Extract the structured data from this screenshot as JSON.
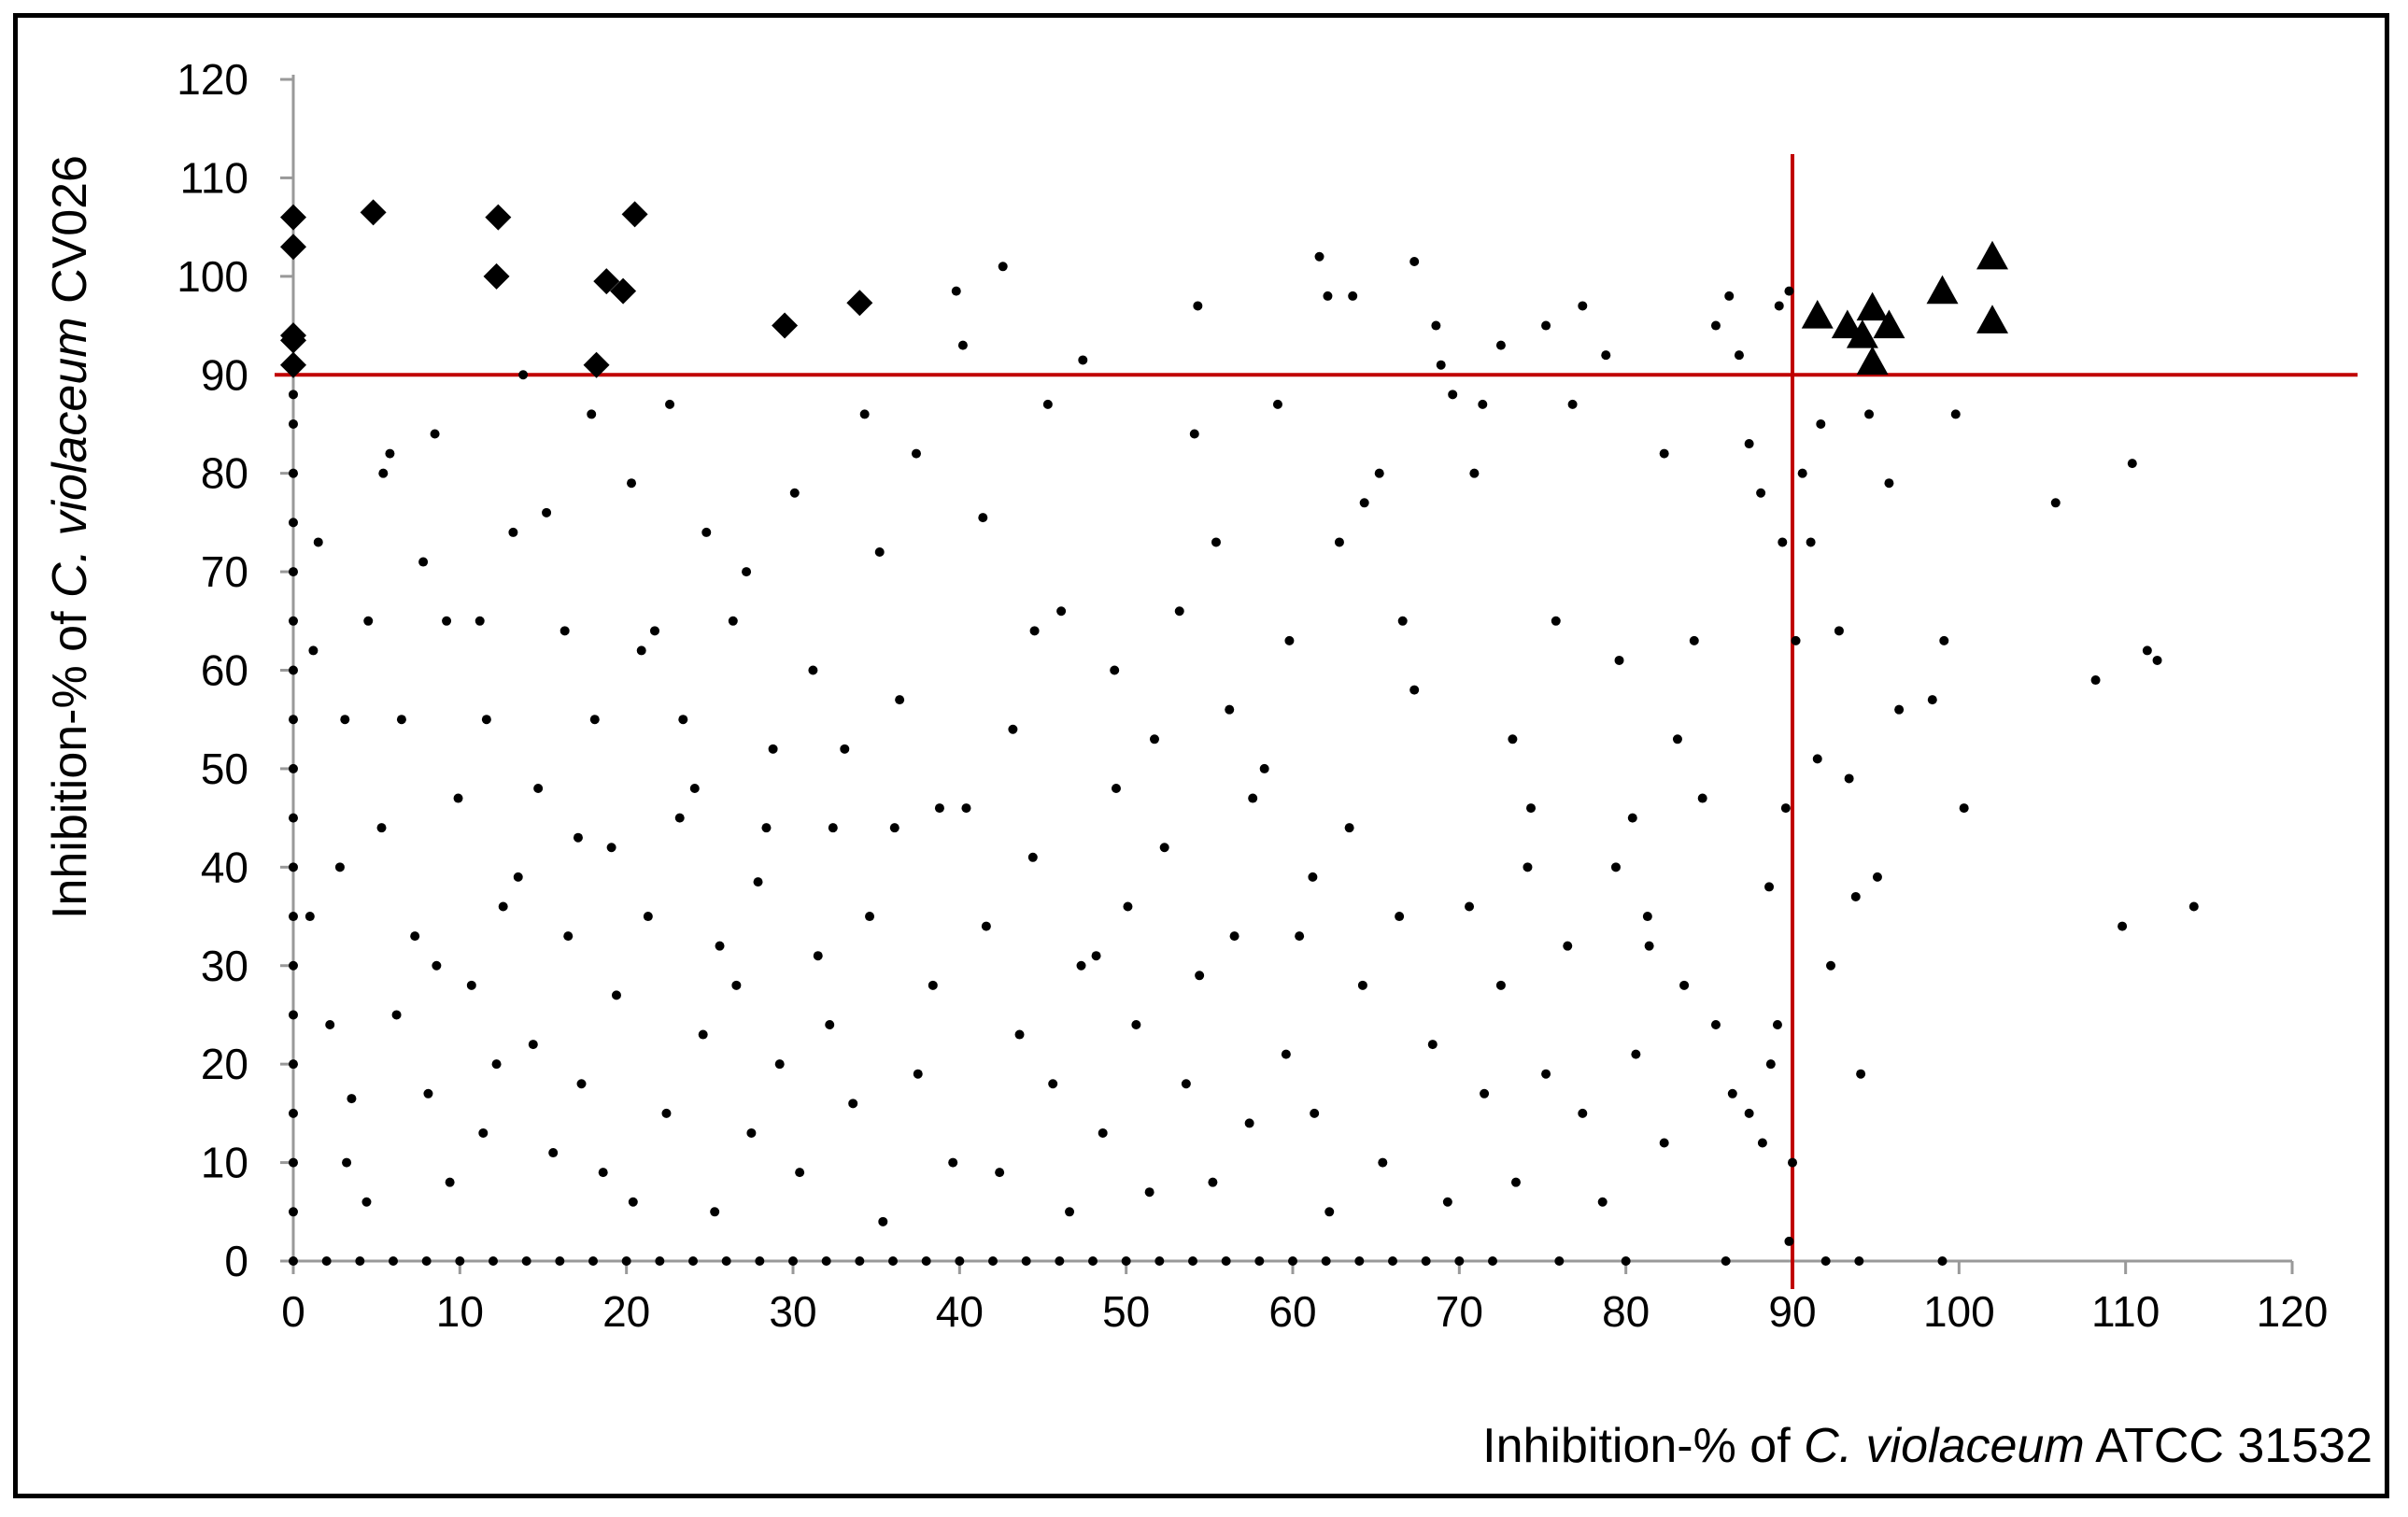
{
  "chart_data": {
    "type": "scatter",
    "xlabel": {
      "prefix": "Inhibition-% of ",
      "italic": "C. violaceum",
      "suffix": " ATCC 31532"
    },
    "ylabel": {
      "prefix": "Inhibition-% of ",
      "italic": "C. violaceum",
      "suffix": " CV026"
    },
    "xlim": [
      0,
      120
    ],
    "ylim": [
      0,
      120
    ],
    "xticks": [
      "0",
      "10",
      "20",
      "30",
      "40",
      "50",
      "60",
      "70",
      "80",
      "90",
      "100",
      "110",
      "120"
    ],
    "yticks": [
      "0",
      "10",
      "20",
      "30",
      "40",
      "50",
      "60",
      "70",
      "80",
      "90",
      "100",
      "110",
      "120"
    ],
    "grid": false,
    "legend": "none",
    "threshold_lines": {
      "x": 90,
      "y": 90,
      "color": "#C00000"
    },
    "marker_color": "#000000",
    "series": [
      {
        "marker": "diamond",
        "points": [
          [
            0,
            106
          ],
          [
            0,
            103
          ],
          [
            0,
            94
          ],
          [
            0,
            93.5
          ],
          [
            0,
            91
          ],
          [
            4.8,
            106.5
          ],
          [
            12.3,
            106
          ],
          [
            12.2,
            100
          ],
          [
            20.5,
            106.3
          ],
          [
            18.8,
            99.5
          ],
          [
            19.8,
            98.5
          ],
          [
            18.2,
            91
          ],
          [
            29.5,
            95
          ],
          [
            34,
            97.3
          ]
        ]
      },
      {
        "marker": "triangle",
        "points": [
          [
            91.5,
            96
          ],
          [
            93.3,
            95
          ],
          [
            94.2,
            94
          ],
          [
            94.8,
            96.8
          ],
          [
            94.8,
            91.3
          ],
          [
            95.8,
            95
          ],
          [
            99,
            98.5
          ],
          [
            102,
            102
          ],
          [
            102,
            95.5
          ]
        ]
      },
      {
        "marker": "dot",
        "points": [
          [
            0,
            0
          ],
          [
            0,
            5
          ],
          [
            0,
            10
          ],
          [
            0,
            15
          ],
          [
            0,
            20
          ],
          [
            0,
            25
          ],
          [
            0,
            30
          ],
          [
            0,
            35
          ],
          [
            0,
            40
          ],
          [
            0,
            45
          ],
          [
            0,
            50
          ],
          [
            0,
            55
          ],
          [
            0,
            60
          ],
          [
            0,
            65
          ],
          [
            0,
            70
          ],
          [
            0,
            75
          ],
          [
            0,
            80
          ],
          [
            0,
            85
          ],
          [
            0,
            88
          ],
          [
            2,
            0
          ],
          [
            4,
            0
          ],
          [
            6,
            0
          ],
          [
            8,
            0
          ],
          [
            10,
            0
          ],
          [
            12,
            0
          ],
          [
            14,
            0
          ],
          [
            16,
            0
          ],
          [
            18,
            0
          ],
          [
            20,
            0
          ],
          [
            22,
            0
          ],
          [
            24,
            0
          ],
          [
            26,
            0
          ],
          [
            28,
            0
          ],
          [
            30,
            0
          ],
          [
            32,
            0
          ],
          [
            34,
            0
          ],
          [
            36,
            0
          ],
          [
            38,
            0
          ],
          [
            40,
            0
          ],
          [
            42,
            0
          ],
          [
            44,
            0
          ],
          [
            46,
            0
          ],
          [
            48,
            0
          ],
          [
            50,
            0
          ],
          [
            52,
            0
          ],
          [
            54,
            0
          ],
          [
            56,
            0
          ],
          [
            58,
            0
          ],
          [
            60,
            0
          ],
          [
            62,
            0
          ],
          [
            64,
            0
          ],
          [
            66,
            0
          ],
          [
            68,
            0
          ],
          [
            70,
            0
          ],
          [
            72,
            0
          ],
          [
            76,
            0
          ],
          [
            80,
            0
          ],
          [
            86,
            0
          ],
          [
            92,
            0
          ],
          [
            94,
            0
          ],
          [
            99,
            0
          ],
          [
            1.2,
            62
          ],
          [
            1.5,
            73
          ],
          [
            2.8,
            40
          ],
          [
            3.1,
            55
          ],
          [
            3.5,
            16.5
          ],
          [
            4.5,
            65
          ],
          [
            5.4,
            80
          ],
          [
            5.8,
            82
          ],
          [
            6.5,
            55
          ],
          [
            7.8,
            71
          ],
          [
            8.5,
            84
          ],
          [
            9.2,
            65
          ],
          [
            8.6,
            30
          ],
          [
            9.9,
            47
          ],
          [
            11.2,
            65
          ],
          [
            11.6,
            55
          ],
          [
            12.6,
            36
          ],
          [
            13.2,
            74
          ],
          [
            13.8,
            90
          ],
          [
            14.7,
            48
          ],
          [
            15.2,
            76
          ],
          [
            16.3,
            64
          ],
          [
            17.1,
            43
          ],
          [
            17.9,
            86
          ],
          [
            18.1,
            55
          ],
          [
            19.1,
            42
          ],
          [
            20.3,
            79
          ],
          [
            20.9,
            62
          ],
          [
            21.7,
            64
          ],
          [
            22.6,
            87
          ],
          [
            23.4,
            55
          ],
          [
            24.1,
            48
          ],
          [
            24.8,
            74
          ],
          [
            25.6,
            32
          ],
          [
            26.4,
            65
          ],
          [
            27.2,
            70
          ],
          [
            27.9,
            38.5
          ],
          [
            28.8,
            52
          ],
          [
            30.1,
            78
          ],
          [
            31.2,
            60
          ],
          [
            32.2,
            24
          ],
          [
            33.1,
            52
          ],
          [
            34.3,
            86
          ],
          [
            35.2,
            72
          ],
          [
            36.1,
            44
          ],
          [
            37.4,
            82
          ],
          [
            38.8,
            46
          ],
          [
            39.8,
            98.5
          ],
          [
            40.2,
            93
          ],
          [
            41.4,
            75.5
          ],
          [
            42.6,
            101
          ],
          [
            43.2,
            54
          ],
          [
            44.5,
            64
          ],
          [
            45.3,
            87
          ],
          [
            46.1,
            66
          ],
          [
            47.4,
            91.5
          ],
          [
            48.2,
            31
          ],
          [
            49.3,
            60
          ],
          [
            50.1,
            36
          ],
          [
            51.7,
            53
          ],
          [
            53.2,
            66
          ],
          [
            54.1,
            84
          ],
          [
            54.3,
            97
          ],
          [
            55.4,
            73
          ],
          [
            56.2,
            56
          ],
          [
            57.6,
            47
          ],
          [
            59.1,
            87
          ],
          [
            59.8,
            63
          ],
          [
            61.2,
            39
          ],
          [
            61.6,
            102
          ],
          [
            62.1,
            98
          ],
          [
            62.8,
            73
          ],
          [
            63.6,
            98
          ],
          [
            64.3,
            77
          ],
          [
            65.2,
            80
          ],
          [
            66.6,
            65
          ],
          [
            67.3,
            101.5
          ],
          [
            68.6,
            95
          ],
          [
            68.9,
            91
          ],
          [
            69.6,
            88
          ],
          [
            70.9,
            80
          ],
          [
            71.4,
            87
          ],
          [
            72.5,
            93
          ],
          [
            73.2,
            53
          ],
          [
            74.1,
            40
          ],
          [
            75.2,
            95
          ],
          [
            75.8,
            65
          ],
          [
            76.8,
            87
          ],
          [
            77.4,
            97
          ],
          [
            78.8,
            92
          ],
          [
            79.6,
            61
          ],
          [
            80.4,
            45
          ],
          [
            81.3,
            35
          ],
          [
            82.3,
            82
          ],
          [
            83.1,
            53
          ],
          [
            84.1,
            63
          ],
          [
            85.4,
            95
          ],
          [
            86.2,
            98
          ],
          [
            86.8,
            92
          ],
          [
            87.4,
            83
          ],
          [
            88.1,
            78
          ],
          [
            88.6,
            38
          ],
          [
            89.2,
            97
          ],
          [
            89.8,
            98.5
          ],
          [
            89.4,
            73
          ],
          [
            90.2,
            63
          ],
          [
            90.6,
            80
          ],
          [
            91.1,
            73
          ],
          [
            91.7,
            85
          ],
          [
            91.5,
            51
          ],
          [
            92.3,
            30
          ],
          [
            92.8,
            64
          ],
          [
            93.4,
            49
          ],
          [
            93.8,
            37
          ],
          [
            94.1,
            19
          ],
          [
            94.6,
            86
          ],
          [
            95.1,
            39
          ],
          [
            95.8,
            79
          ],
          [
            96.4,
            56
          ],
          [
            98.4,
            57
          ],
          [
            99.1,
            63
          ],
          [
            99.8,
            86
          ],
          [
            100.3,
            46
          ],
          [
            105.8,
            77
          ],
          [
            108.2,
            59
          ],
          [
            109.8,
            34
          ],
          [
            110.4,
            81
          ],
          [
            111.3,
            62
          ],
          [
            111.9,
            61
          ],
          [
            114.1,
            36
          ],
          [
            1,
            35
          ],
          [
            2.2,
            24
          ],
          [
            3.2,
            10
          ],
          [
            4.4,
            6
          ],
          [
            5.3,
            44
          ],
          [
            6.2,
            25
          ],
          [
            7.3,
            33
          ],
          [
            8.1,
            17
          ],
          [
            9.4,
            8
          ],
          [
            10.7,
            28
          ],
          [
            11.4,
            13
          ],
          [
            12.2,
            20
          ],
          [
            13.5,
            39
          ],
          [
            14.4,
            22
          ],
          [
            15.6,
            11
          ],
          [
            16.5,
            33
          ],
          [
            17.3,
            18
          ],
          [
            18.6,
            9
          ],
          [
            19.4,
            27
          ],
          [
            20.4,
            6
          ],
          [
            21.3,
            35
          ],
          [
            22.4,
            15
          ],
          [
            23.2,
            45
          ],
          [
            24.6,
            23
          ],
          [
            25.3,
            5
          ],
          [
            26.6,
            28
          ],
          [
            27.5,
            13
          ],
          [
            28.4,
            44
          ],
          [
            29.2,
            20
          ],
          [
            30.4,
            9
          ],
          [
            31.5,
            31
          ],
          [
            32.4,
            44
          ],
          [
            33.6,
            16
          ],
          [
            34.6,
            35
          ],
          [
            35.4,
            4
          ],
          [
            36.4,
            57
          ],
          [
            37.5,
            19
          ],
          [
            38.4,
            28
          ],
          [
            39.6,
            10
          ],
          [
            40.4,
            46
          ],
          [
            41.6,
            34
          ],
          [
            42.4,
            9
          ],
          [
            43.6,
            23
          ],
          [
            44.4,
            41
          ],
          [
            45.6,
            18
          ],
          [
            46.6,
            5
          ],
          [
            47.3,
            30
          ],
          [
            48.6,
            13
          ],
          [
            49.4,
            48
          ],
          [
            50.6,
            24
          ],
          [
            51.4,
            7
          ],
          [
            52.3,
            42
          ],
          [
            53.6,
            18
          ],
          [
            54.4,
            29
          ],
          [
            55.2,
            8
          ],
          [
            56.5,
            33
          ],
          [
            57.4,
            14
          ],
          [
            58.3,
            50
          ],
          [
            59.6,
            21
          ],
          [
            60.4,
            33
          ],
          [
            61.3,
            15
          ],
          [
            62.2,
            5
          ],
          [
            63.4,
            44
          ],
          [
            64.2,
            28
          ],
          [
            65.4,
            10
          ],
          [
            66.4,
            35
          ],
          [
            67.3,
            58
          ],
          [
            68.4,
            22
          ],
          [
            69.3,
            6
          ],
          [
            70.6,
            36
          ],
          [
            71.5,
            17
          ],
          [
            72.5,
            28
          ],
          [
            73.4,
            8
          ],
          [
            74.3,
            46
          ],
          [
            75.2,
            19
          ],
          [
            76.5,
            32
          ],
          [
            77.4,
            15
          ],
          [
            78.6,
            6
          ],
          [
            79.4,
            40
          ],
          [
            80.6,
            21
          ],
          [
            81.4,
            32
          ],
          [
            82.3,
            12
          ],
          [
            83.5,
            28
          ],
          [
            84.6,
            47
          ],
          [
            85.4,
            24
          ],
          [
            86.4,
            17
          ],
          [
            87.4,
            15
          ],
          [
            88.2,
            12
          ],
          [
            88.7,
            20
          ],
          [
            89.1,
            24
          ],
          [
            89.6,
            46
          ],
          [
            90,
            10
          ],
          [
            89.8,
            2
          ]
        ]
      }
    ]
  }
}
